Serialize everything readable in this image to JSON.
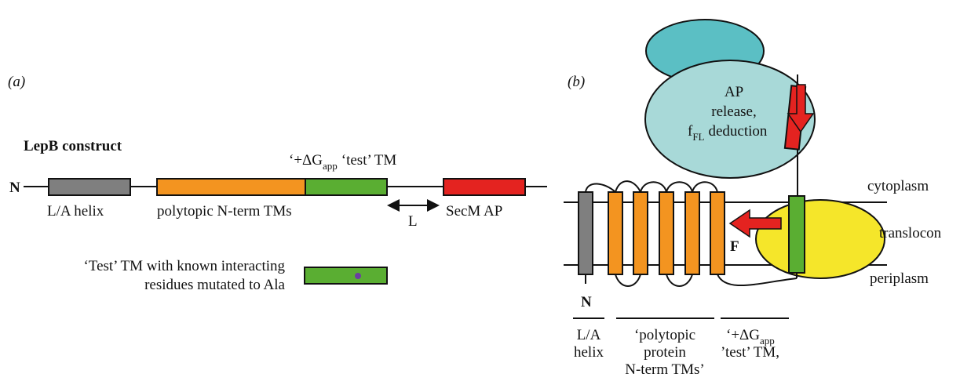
{
  "panel_a": {
    "label": "(a)",
    "construct_title": "LepB construct",
    "n_terminus": "N",
    "segments": {
      "helix": "L/A helix",
      "tms": "polytopic N-term TMs",
      "test_tm": {
        "prefix": "‘+ΔG",
        "subscript": "app",
        "suffix": "‘test’ TM"
      },
      "linker": "L",
      "arrest_peptide": "SecM AP"
    },
    "mutant_note": [
      "‘Test’ TM with known interacting",
      "residues mutated to Ala"
    ]
  },
  "panel_b": {
    "label": "(b)",
    "ribosome_text": {
      "line1": "AP",
      "line2": "release,",
      "f": "f",
      "f_sub": "FL",
      "line3": "deduction"
    },
    "cytoplasm": "cytoplasm",
    "translocon": "translocon",
    "periplasm": "periplasm",
    "force": "F",
    "n_terminus": "N",
    "captions": {
      "helix": [
        "L/A",
        "helix"
      ],
      "tms": [
        "‘polytopic",
        "protein",
        "N-term TMs’"
      ],
      "test_tm": {
        "prefix": "‘+ΔG",
        "subscript": "app",
        "line2": "’test’ TM,"
      }
    }
  }
}
